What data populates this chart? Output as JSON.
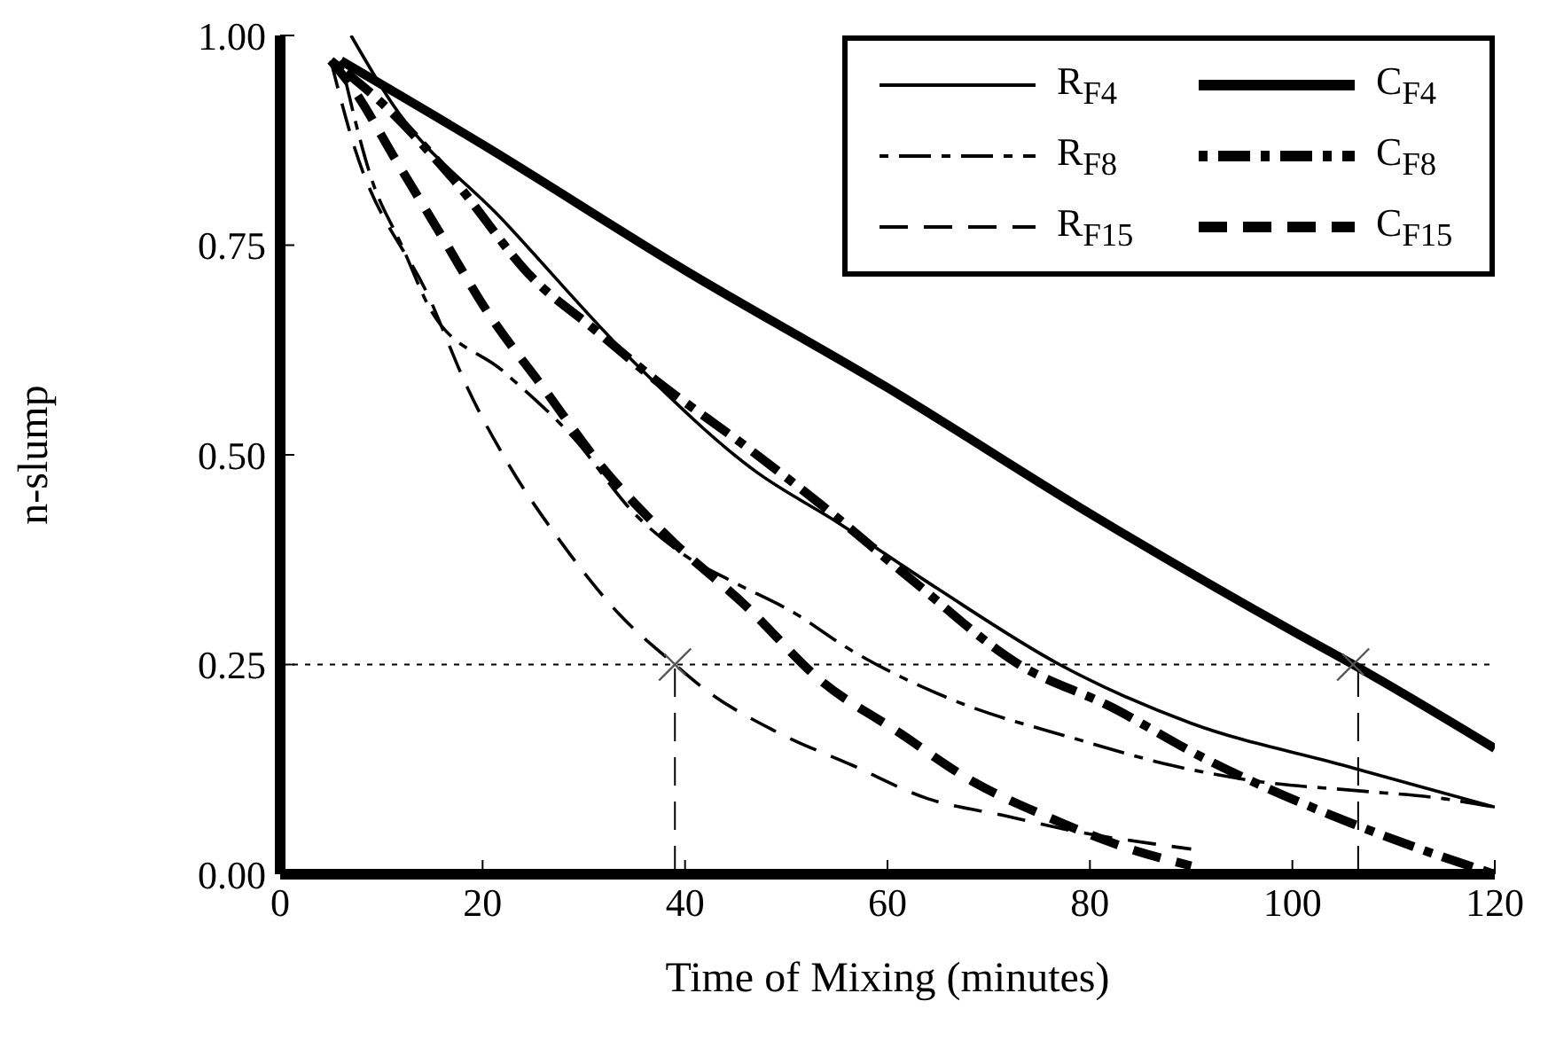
{
  "chart_data": {
    "type": "line",
    "xlabel": "Time of Mixing (minutes)",
    "ylabel": "n-slump",
    "xlim": [
      0,
      120
    ],
    "xticks": [
      0,
      20,
      40,
      60,
      80,
      100,
      120
    ],
    "ylim": [
      0,
      1
    ],
    "yticks": [
      {
        "value": 0,
        "label": "0.00"
      },
      {
        "value": 0.25,
        "label": "0.25"
      },
      {
        "value": 0.5,
        "label": "0.50"
      },
      {
        "value": 0.75,
        "label": "0.75"
      },
      {
        "value": 1,
        "label": "1.00"
      }
    ],
    "legend": "top right",
    "marker": "none",
    "series": [
      {
        "name": "R$_{F4}$",
        "color": "#000000",
        "line_style": "solid",
        "x": [
          7,
          11,
          22,
          35,
          47,
          55,
          65,
          77,
          90,
          105,
          120
        ],
        "values": [
          1.0,
          0.92,
          0.78,
          0.61,
          0.48,
          0.42,
          0.34,
          0.25,
          0.18,
          0.13,
          0.08
        ]
      },
      {
        "name": "R$_{F8}$",
        "color": "#000000",
        "line_style": "dashdot",
        "x": [
          6,
          9,
          12,
          15,
          22,
          29,
          35,
          40,
          44.5,
          51,
          56,
          66,
          79,
          88,
          97,
          106,
          115,
          120
        ],
        "values": [
          0.97,
          0.83,
          0.75,
          0.67,
          0.6,
          0.52,
          0.43,
          0.38,
          0.35,
          0.31,
          0.27,
          0.21,
          0.16,
          0.13,
          0.11,
          0.1,
          0.09,
          0.08
        ]
      },
      {
        "name": "R$_{F15}$",
        "color": "#000000",
        "line_style": "dashed",
        "x": [
          5,
          7,
          15,
          18.5,
          22.5,
          27.5,
          33.5,
          39,
          42,
          49,
          56.5,
          64,
          71.5,
          79,
          87,
          90
        ],
        "values": [
          0.97,
          0.88,
          0.68,
          0.58,
          0.49,
          0.4,
          0.31,
          0.25,
          0.22,
          0.17,
          0.13,
          0.09,
          0.07,
          0.05,
          0.035,
          0.03
        ]
      },
      {
        "name": "C$_{F4}$",
        "color": "#000000",
        "line_style": "solid",
        "x": [
          6,
          20,
          40,
          60,
          80,
          100,
          106,
          120
        ],
        "values": [
          0.97,
          0.87,
          0.72,
          0.58,
          0.43,
          0.29,
          0.25,
          0.15
        ]
      },
      {
        "name": "C$_{F8}$",
        "color": "#000000",
        "line_style": "dashdot",
        "x": [
          5,
          10,
          17,
          25,
          31,
          37,
          46,
          53.5,
          62.5,
          73,
          82,
          91,
          106,
          115,
          120
        ],
        "values": [
          0.97,
          0.92,
          0.83,
          0.71,
          0.65,
          0.59,
          0.51,
          0.44,
          0.35,
          0.25,
          0.2,
          0.14,
          0.06,
          0.02,
          0
        ]
      },
      {
        "name": "C$_{F15}$",
        "color": "#000000",
        "line_style": "dashed",
        "x": [
          5,
          7,
          11.5,
          16,
          20.5,
          26,
          31.5,
          38.5,
          46,
          53.5,
          61,
          68.5,
          75.5,
          84,
          90
        ],
        "values": [
          0.97,
          0.94,
          0.85,
          0.76,
          0.67,
          0.58,
          0.49,
          0.4,
          0.32,
          0.23,
          0.17,
          0.11,
          0.07,
          0.03,
          0.01
        ]
      },
      {
        "type": "scatter",
        "marker": "cross",
        "color": "#555555",
        "x": [
          39,
          106
        ],
        "values": [
          0.25,
          0.25
        ]
      }
    ],
    "ref_lines": [
      {
        "axis": "y",
        "value": 0.25,
        "line_style": "dotted",
        "color": "#000000"
      },
      {
        "axis": "x",
        "value": 39,
        "line_style": "dashed",
        "color": "#000000"
      },
      {
        "axis": "x",
        "value": 106.5,
        "line_style": "dashed",
        "color": "#000000"
      }
    ]
  }
}
